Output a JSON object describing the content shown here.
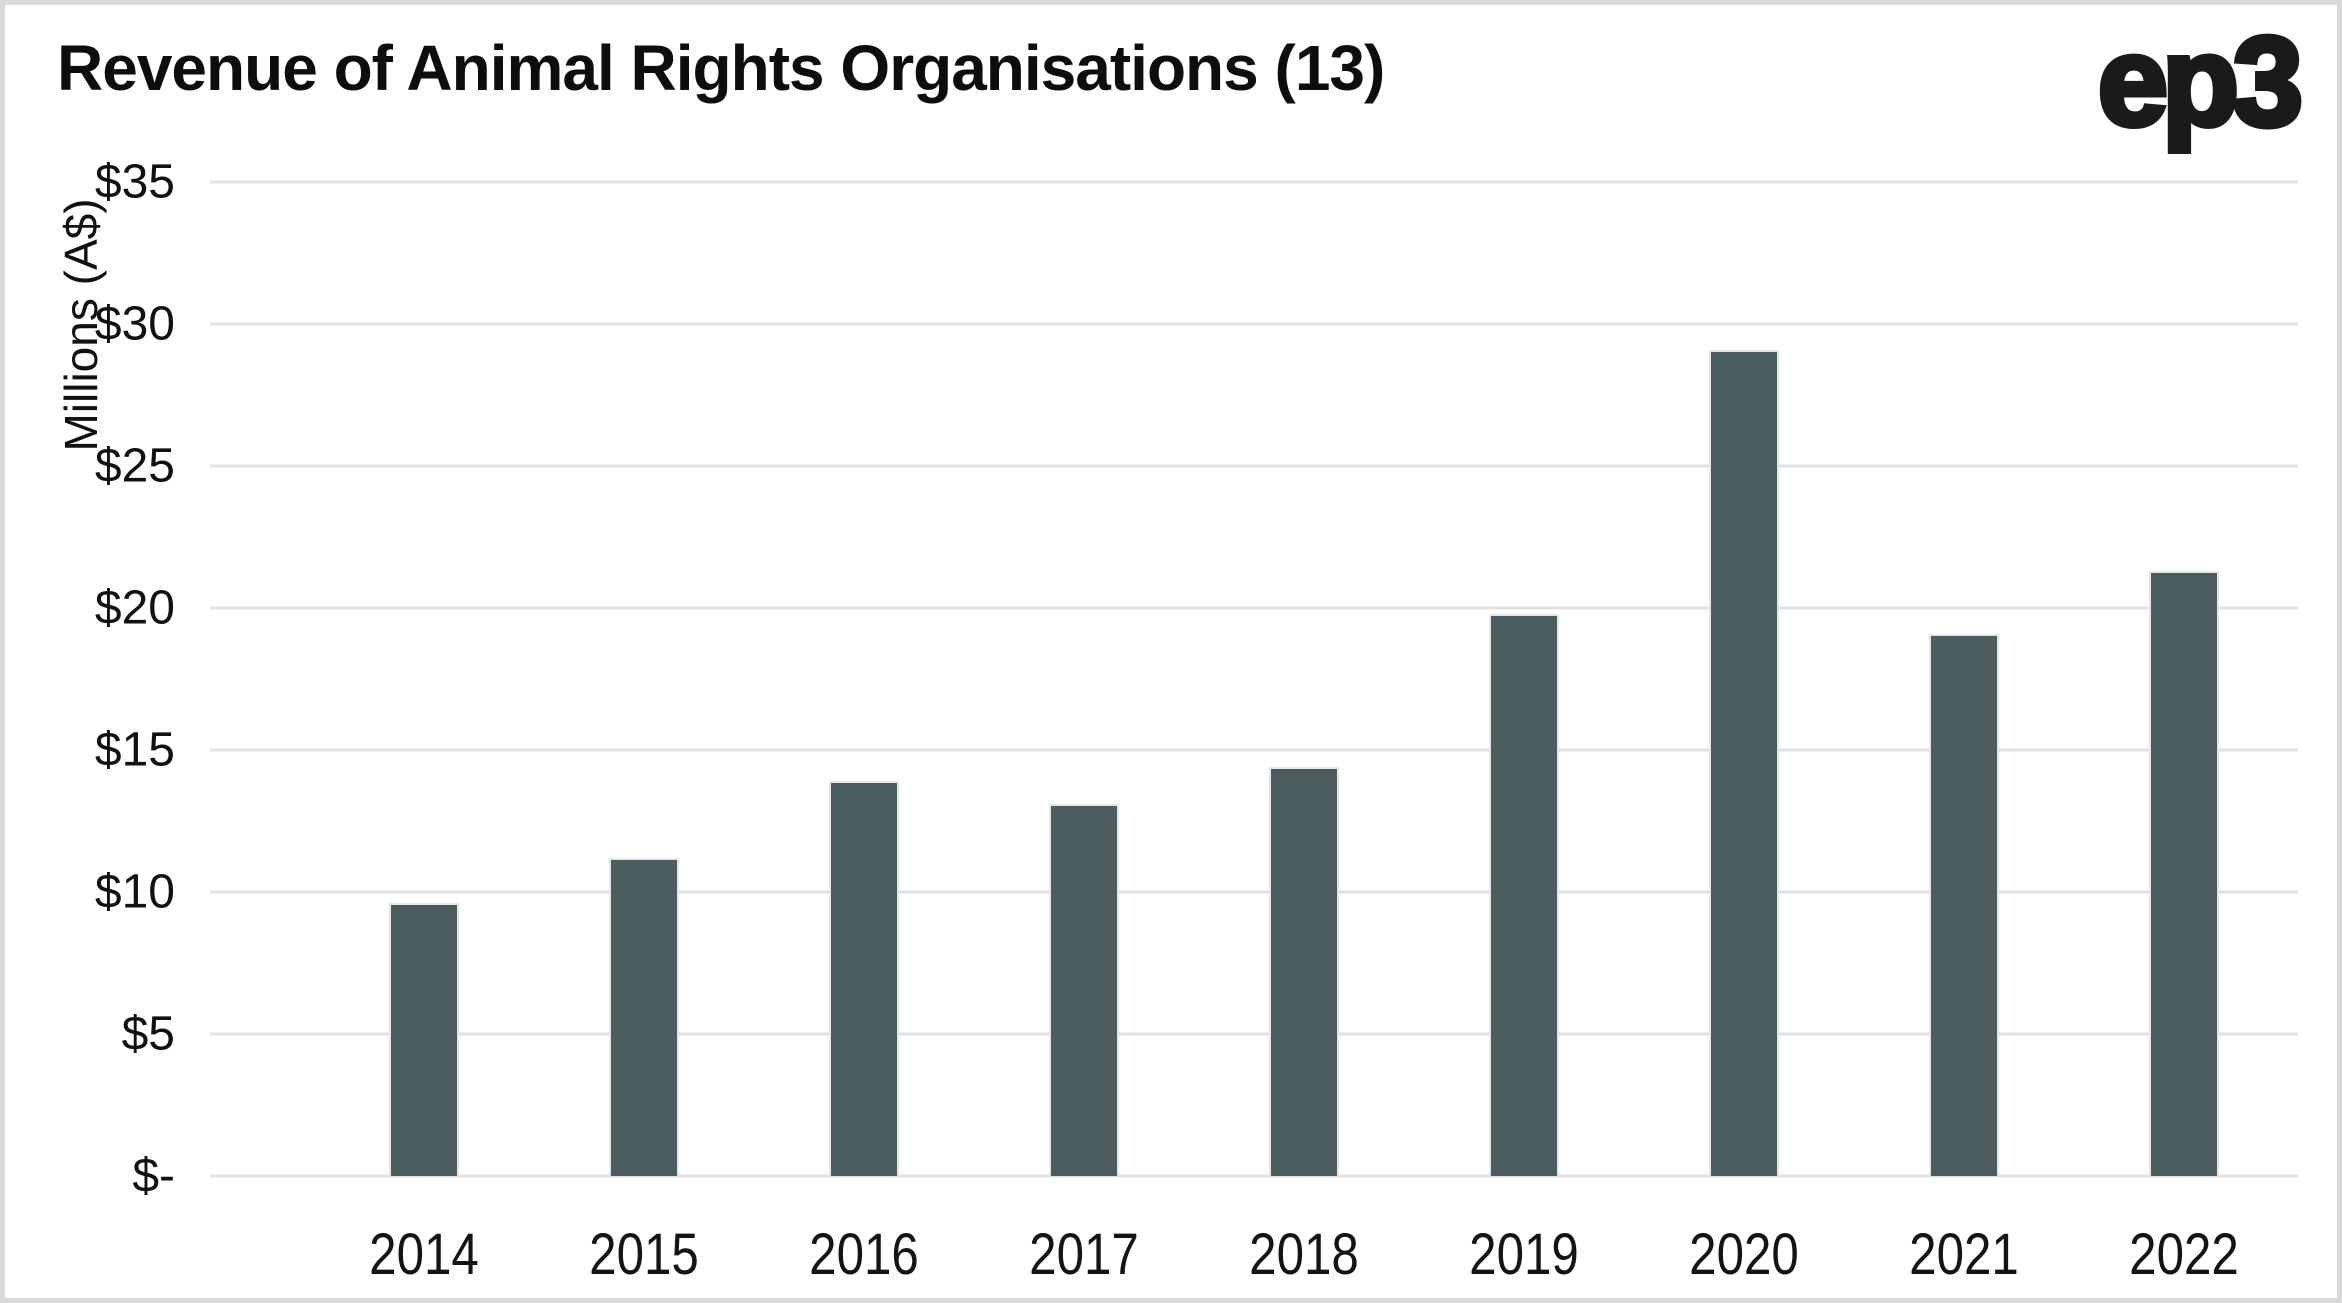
{
  "header": {
    "logo_text": "ep3"
  },
  "chart_data": {
    "type": "bar",
    "title": "Revenue of Animal Rights Organisations (13)",
    "categories": [
      "2014",
      "2015",
      "2016",
      "2017",
      "2018",
      "2019",
      "2020",
      "2021",
      "2022"
    ],
    "values": [
      9.6,
      11.2,
      13.9,
      13.1,
      14.4,
      19.8,
      29.1,
      19.1,
      21.3
    ],
    "xlabel": "",
    "ylabel": "Millions (A$)",
    "ylim": [
      0,
      35
    ],
    "y_ticks": [
      {
        "label": "$35",
        "value": 35
      },
      {
        "label": "$30",
        "value": 30
      },
      {
        "label": "$25",
        "value": 25
      },
      {
        "label": "$20",
        "value": 20
      },
      {
        "label": "$15",
        "value": 15
      },
      {
        "label": "$10",
        "value": 10
      },
      {
        "label": "$5",
        "value": 5
      },
      {
        "label": "$-",
        "value": 0
      }
    ],
    "grid": true,
    "legend": false,
    "colors": {
      "bar": "#4a5c5e",
      "gridline": "#e1e1e1",
      "text": "#111111",
      "frame_border": "#d9d9d9",
      "background": "#ffffff"
    }
  }
}
